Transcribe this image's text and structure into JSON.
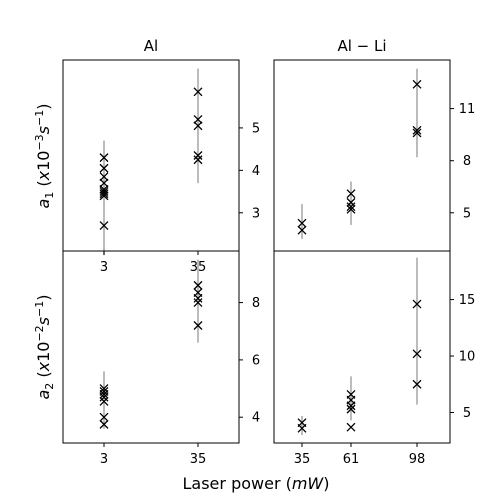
{
  "chart_data": {
    "type": "scatter",
    "xlabel": "Laser power (mW)",
    "panels": [
      {
        "id": "a1-al",
        "title": "Al",
        "ylabel": "a1 (x10^-3 s^-1)",
        "x_categories": [
          3,
          35
        ],
        "x_ticks": [
          3,
          35
        ],
        "ylim": [
          2.1,
          6.6
        ],
        "y_ticks": [
          3,
          4,
          5
        ],
        "y_axis_side": "right",
        "errorbars": [
          {
            "x": 3,
            "low": 2.0,
            "high": 4.7
          },
          {
            "x": 35,
            "low": 3.7,
            "high": 6.4
          }
        ],
        "points": [
          {
            "x": 3,
            "y": 2.7
          },
          {
            "x": 3,
            "y": 3.4
          },
          {
            "x": 3,
            "y": 3.45
          },
          {
            "x": 3,
            "y": 3.5
          },
          {
            "x": 3,
            "y": 3.55
          },
          {
            "x": 3,
            "y": 3.7
          },
          {
            "x": 3,
            "y": 3.85
          },
          {
            "x": 3,
            "y": 4.05
          },
          {
            "x": 3,
            "y": 4.3
          },
          {
            "x": 35,
            "y": 4.25
          },
          {
            "x": 35,
            "y": 4.35
          },
          {
            "x": 35,
            "y": 5.05
          },
          {
            "x": 35,
            "y": 5.2
          },
          {
            "x": 35,
            "y": 5.85
          }
        ]
      },
      {
        "id": "a1-alli",
        "title": "Al − Li",
        "ylabel": "",
        "x_categories": [
          35,
          61,
          98
        ],
        "x_ticks": [],
        "ylim": [
          2.8,
          13.8
        ],
        "y_ticks": [
          5,
          8,
          11
        ],
        "y_axis_side": "right",
        "errorbars": [
          {
            "x": 35,
            "low": 3.5,
            "high": 5.5
          },
          {
            "x": 61,
            "low": 4.3,
            "high": 6.8
          },
          {
            "x": 98,
            "low": 8.2,
            "high": 13.3
          }
        ],
        "points": [
          {
            "x": 35,
            "y": 4.0
          },
          {
            "x": 35,
            "y": 4.4
          },
          {
            "x": 61,
            "y": 5.2
          },
          {
            "x": 61,
            "y": 5.35
          },
          {
            "x": 61,
            "y": 5.6
          },
          {
            "x": 61,
            "y": 6.1
          },
          {
            "x": 98,
            "y": 9.6
          },
          {
            "x": 98,
            "y": 9.75
          },
          {
            "x": 98,
            "y": 12.4
          }
        ]
      },
      {
        "id": "a2-al",
        "title": "",
        "ylabel": "a2 (x10^-2 s^-1)",
        "x_categories": [
          3,
          35
        ],
        "x_ticks": [
          3,
          35
        ],
        "ylim": [
          3.1,
          9.8
        ],
        "y_ticks": [
          4,
          6,
          8
        ],
        "y_axis_side": "right",
        "errorbars": [
          {
            "x": 3,
            "low": 3.6,
            "high": 5.6
          },
          {
            "x": 35,
            "low": 6.6,
            "high": 9.5
          }
        ],
        "points": [
          {
            "x": 3,
            "y": 3.75
          },
          {
            "x": 3,
            "y": 4.0
          },
          {
            "x": 3,
            "y": 4.55
          },
          {
            "x": 3,
            "y": 4.7
          },
          {
            "x": 3,
            "y": 4.8
          },
          {
            "x": 3,
            "y": 4.9
          },
          {
            "x": 3,
            "y": 5.0
          },
          {
            "x": 35,
            "y": 7.2
          },
          {
            "x": 35,
            "y": 8.0
          },
          {
            "x": 35,
            "y": 8.15
          },
          {
            "x": 35,
            "y": 8.35
          },
          {
            "x": 35,
            "y": 8.6
          }
        ]
      },
      {
        "id": "a2-alli",
        "title": "",
        "ylabel": "",
        "x_categories": [
          35,
          61,
          98
        ],
        "x_ticks": [
          35,
          61,
          98
        ],
        "ylim": [
          2.3,
          19.3
        ],
        "y_ticks": [
          5,
          10,
          15
        ],
        "y_axis_side": "right",
        "errorbars": [
          {
            "x": 35,
            "low": 3.0,
            "high": 4.7
          },
          {
            "x": 61,
            "low": 4.3,
            "high": 8.2
          },
          {
            "x": 98,
            "low": 5.7,
            "high": 18.7
          }
        ],
        "points": [
          {
            "x": 35,
            "y": 3.6
          },
          {
            "x": 35,
            "y": 4.1
          },
          {
            "x": 61,
            "y": 3.7
          },
          {
            "x": 61,
            "y": 5.3
          },
          {
            "x": 61,
            "y": 5.6
          },
          {
            "x": 61,
            "y": 6.1
          },
          {
            "x": 61,
            "y": 6.6
          },
          {
            "x": 98,
            "y": 7.5
          },
          {
            "x": 98,
            "y": 10.2
          },
          {
            "x": 98,
            "y": 14.6
          }
        ]
      }
    ]
  }
}
